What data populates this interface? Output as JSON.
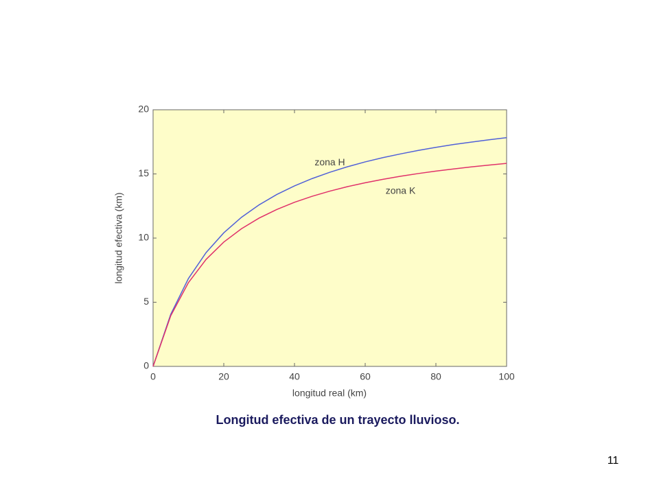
{
  "chart_data": {
    "type": "line",
    "title": "Longitud efectiva de un trayecto lluvioso.",
    "x_label": "longitud real (km)",
    "y_label": "longitud efectiva (km)",
    "x": [
      0,
      5,
      10,
      15,
      20,
      25,
      30,
      35,
      40,
      45,
      50,
      55,
      60,
      65,
      70,
      75,
      80,
      85,
      90,
      95,
      100
    ],
    "series": [
      {
        "name": "zona H",
        "color": "#5060d8",
        "values": [
          0,
          4.06,
          6.85,
          8.87,
          10.41,
          11.62,
          12.59,
          13.4,
          14.07,
          14.64,
          15.13,
          15.56,
          15.94,
          16.27,
          16.56,
          16.83,
          17.07,
          17.29,
          17.48,
          17.66,
          17.83
        ]
      },
      {
        "name": "zona K",
        "color": "#e0306a",
        "values": [
          0,
          3.95,
          6.53,
          8.34,
          9.69,
          10.73,
          11.56,
          12.23,
          12.79,
          13.26,
          13.66,
          14.01,
          14.31,
          14.58,
          14.82,
          15.03,
          15.22,
          15.39,
          15.55,
          15.69,
          15.82
        ]
      }
    ],
    "xlim": [
      0,
      100
    ],
    "xticks": [
      0,
      20,
      40,
      60,
      80,
      100
    ],
    "ylim": [
      0,
      20
    ],
    "yticks": [
      0,
      5,
      10,
      15,
      20
    ],
    "grid": false
  },
  "page_number": "11"
}
